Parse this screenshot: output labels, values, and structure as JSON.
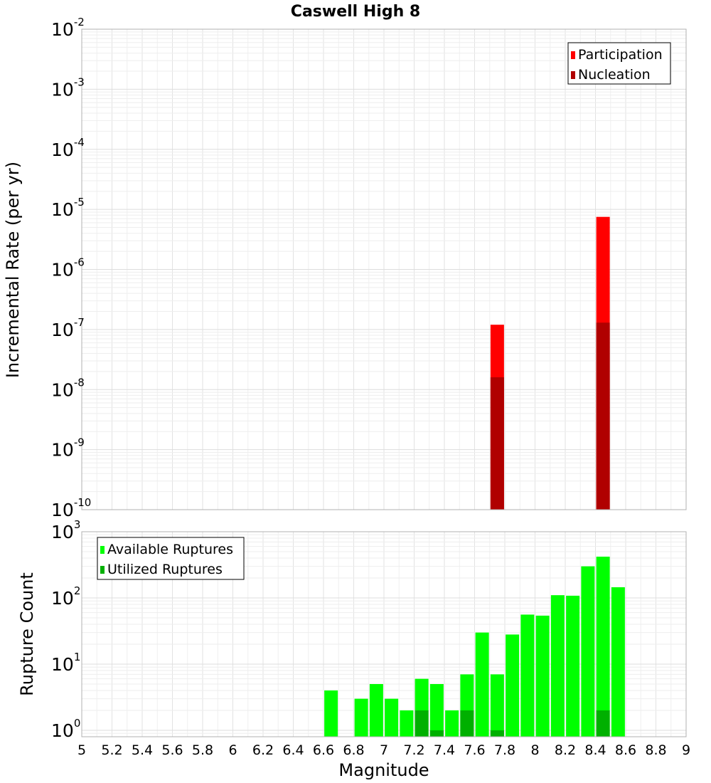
{
  "chart_data": [
    {
      "type": "bar",
      "title": "Caswell High 8",
      "xlabel": "Magnitude",
      "ylabel": "Incremental Rate (per yr)",
      "yscale": "log",
      "xlim": [
        5,
        9
      ],
      "ylim": [
        1e-10,
        0.01
      ],
      "ytick_labels": [
        {
          "base": "10",
          "exp": "-10",
          "value": 1e-10
        },
        {
          "base": "10",
          "exp": "-9",
          "value": 1e-09
        },
        {
          "base": "10",
          "exp": "-8",
          "value": 1e-08
        },
        {
          "base": "10",
          "exp": "-7",
          "value": 1e-07
        },
        {
          "base": "10",
          "exp": "-6",
          "value": 1e-06
        },
        {
          "base": "10",
          "exp": "-5",
          "value": 1e-05
        },
        {
          "base": "10",
          "exp": "-4",
          "value": 0.0001
        },
        {
          "base": "10",
          "exp": "-3",
          "value": 0.001
        },
        {
          "base": "10",
          "exp": "-2",
          "value": 0.01
        }
      ],
      "legend_position": "top-right",
      "series": [
        {
          "name": "Participation",
          "color": "#ff0000",
          "x": [
            7.75,
            8.45
          ],
          "values": [
            1.2e-07,
            7.5e-06
          ]
        },
        {
          "name": "Nucleation",
          "color": "#b00000",
          "x": [
            7.75,
            8.45
          ],
          "values": [
            1.6e-08,
            1.3e-07
          ]
        }
      ]
    },
    {
      "type": "bar",
      "xlabel": "Magnitude",
      "ylabel": "Rupture Count",
      "yscale": "log",
      "xlim": [
        5,
        9
      ],
      "ylim": [
        0.8,
        1000
      ],
      "ytick_labels": [
        {
          "base": "10",
          "exp": "0",
          "value": 1
        },
        {
          "base": "10",
          "exp": "1",
          "value": 10
        },
        {
          "base": "10",
          "exp": "2",
          "value": 100
        },
        {
          "base": "10",
          "exp": "3",
          "value": 1000
        }
      ],
      "xtick_labels": [
        "5",
        "5.2",
        "5.4",
        "5.6",
        "5.8",
        "6",
        "6.2",
        "6.4",
        "6.6",
        "6.8",
        "7",
        "7.2",
        "7.4",
        "7.6",
        "7.8",
        "8",
        "8.2",
        "8.4",
        "8.6",
        "8.8",
        "9"
      ],
      "legend_position": "top-left",
      "series": [
        {
          "name": "Available Ruptures",
          "color": "#00ff00",
          "x": [
            6.65,
            6.85,
            6.95,
            7.05,
            7.15,
            7.25,
            7.35,
            7.45,
            7.55,
            7.65,
            7.75,
            7.85,
            7.95,
            8.05,
            8.15,
            8.25,
            8.35,
            8.45,
            8.55
          ],
          "values": [
            4,
            3,
            5,
            3,
            2,
            6,
            5,
            2,
            7,
            30,
            7,
            28,
            56,
            54,
            110,
            108,
            300,
            420,
            145
          ]
        },
        {
          "name": "Utilized Ruptures",
          "color": "#00b000",
          "x": [
            7.25,
            7.35,
            7.55,
            7.75,
            8.45
          ],
          "values": [
            2,
            1,
            2,
            1,
            2
          ]
        }
      ]
    }
  ]
}
